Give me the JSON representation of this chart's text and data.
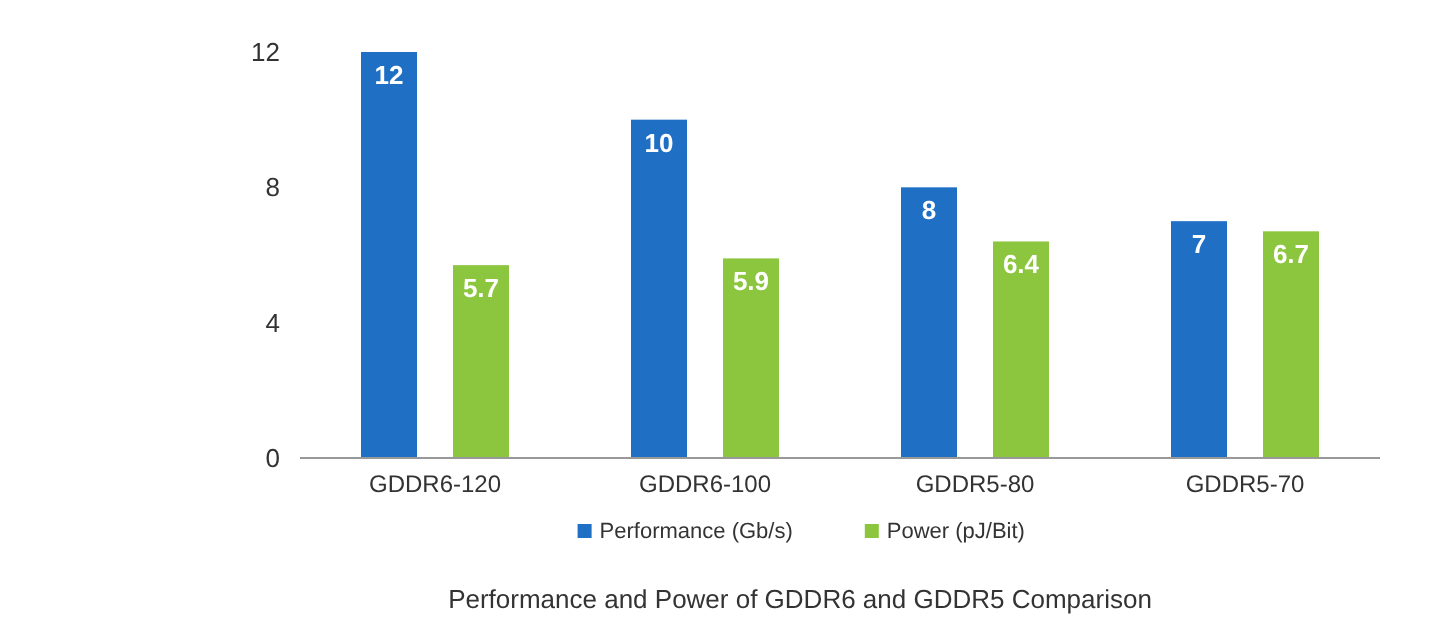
{
  "chart_data": {
    "type": "bar",
    "title": "Performance and Power of GDDR6 and GDDR5 Comparison",
    "categories": [
      "GDDR6-120",
      "GDDR6-100",
      "GDDR5-80",
      "GDDR5-70"
    ],
    "series": [
      {
        "name": "Performance (Gb/s)",
        "color": "#1f6fc5",
        "values": [
          12,
          10,
          8,
          7
        ]
      },
      {
        "name": "Power (pJ/Bit)",
        "color": "#8cc63f",
        "values": [
          5.7,
          5.9,
          6.4,
          6.7
        ]
      }
    ],
    "ylim": [
      0,
      12
    ],
    "yticks": [
      0,
      4,
      8,
      12
    ],
    "grid": false,
    "legend": "bottom",
    "data_labels": true
  }
}
